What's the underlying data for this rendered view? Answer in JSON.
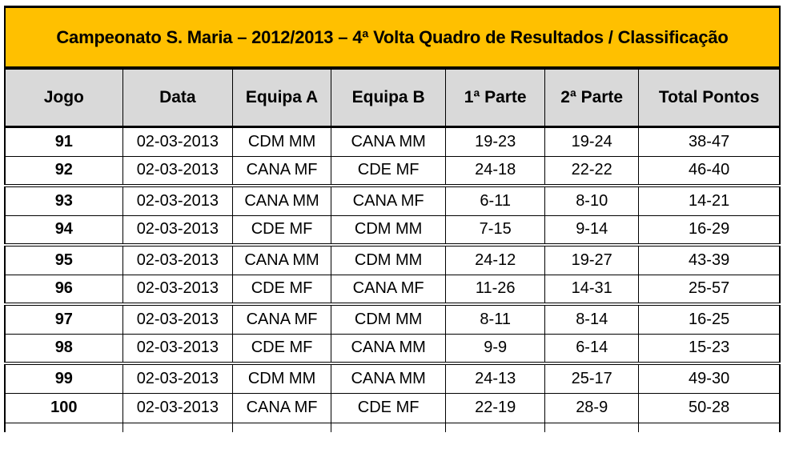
{
  "title": "Campeonato S. Maria – 2012/2013 – 4ª Volta Quadro de Resultados / Classificação",
  "colors": {
    "banner_bg": "#FFC000",
    "header_bg": "#D9D9D9",
    "border_color": "#000000"
  },
  "table": {
    "columns": [
      "Jogo",
      "Data",
      "Equipa A",
      "Equipa B",
      "1ª Parte",
      "2ª Parte",
      "Total Pontos"
    ],
    "rows": [
      {
        "jogo": "91",
        "data": "02-03-2013",
        "equipa_a": "CDM MM",
        "equipa_b": "CANA MM",
        "parte1": "19-23",
        "parte2": "19-24",
        "total": "38-47"
      },
      {
        "jogo": "92",
        "data": "02-03-2013",
        "equipa_a": "CANA MF",
        "equipa_b": "CDE MF",
        "parte1": "24-18",
        "parte2": "22-22",
        "total": "46-40"
      },
      {
        "jogo": "93",
        "data": "02-03-2013",
        "equipa_a": "CANA MM",
        "equipa_b": "CANA MF",
        "parte1": "6-11",
        "parte2": "8-10",
        "total": "14-21"
      },
      {
        "jogo": "94",
        "data": "02-03-2013",
        "equipa_a": "CDE MF",
        "equipa_b": "CDM MM",
        "parte1": "7-15",
        "parte2": "9-14",
        "total": "16-29"
      },
      {
        "jogo": "95",
        "data": "02-03-2013",
        "equipa_a": "CANA MM",
        "equipa_b": "CDM MM",
        "parte1": "24-12",
        "parte2": "19-27",
        "total": "43-39"
      },
      {
        "jogo": "96",
        "data": "02-03-2013",
        "equipa_a": "CDE MF",
        "equipa_b": "CANA MF",
        "parte1": "11-26",
        "parte2": "14-31",
        "total": "25-57"
      },
      {
        "jogo": "97",
        "data": "02-03-2013",
        "equipa_a": "CANA MF",
        "equipa_b": "CDM MM",
        "parte1": "8-11",
        "parte2": "8-14",
        "total": "16-25"
      },
      {
        "jogo": "98",
        "data": "02-03-2013",
        "equipa_a": "CDE MF",
        "equipa_b": "CANA MM",
        "parte1": "9-9",
        "parte2": "6-14",
        "total": "15-23"
      },
      {
        "jogo": "99",
        "data": "02-03-2013",
        "equipa_a": "CDM MM",
        "equipa_b": "CANA MM",
        "parte1": "24-13",
        "parte2": "25-17",
        "total": "49-30"
      },
      {
        "jogo": "100",
        "data": "02-03-2013",
        "equipa_a": "CANA MF",
        "equipa_b": "CDE MF",
        "parte1": "22-19",
        "parte2": "28-9",
        "total": "50-28"
      }
    ]
  }
}
